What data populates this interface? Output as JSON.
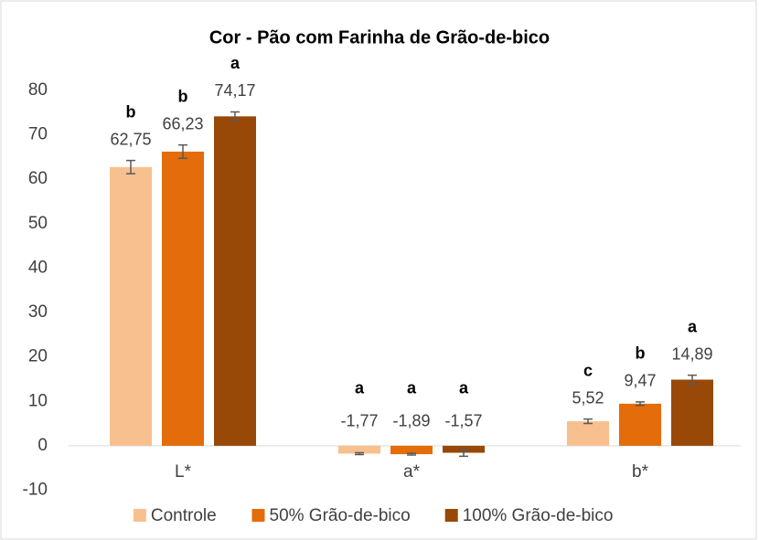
{
  "chart_data": {
    "type": "bar",
    "title": "Cor - Pão com Farinha de Grão-de-bico",
    "categories": [
      "L*",
      "a*",
      "b*"
    ],
    "series": [
      {
        "name": "Controle",
        "color": "#F8C08E",
        "values": [
          62.75,
          -1.77,
          5.52
        ],
        "value_labels": [
          "62,75",
          "-1,77",
          "5,52"
        ],
        "errors": [
          1.5,
          0.2,
          0.5
        ],
        "letters": [
          "b",
          "a",
          "c"
        ]
      },
      {
        "name": "50% Grão-de-bico",
        "color": "#E46C0A",
        "values": [
          66.23,
          -1.89,
          9.47
        ],
        "value_labels": [
          "66,23",
          "-1,89",
          "9,47"
        ],
        "errors": [
          1.5,
          0.2,
          0.4
        ],
        "letters": [
          "b",
          "a",
          "b"
        ]
      },
      {
        "name": "100% Grão-de-bico",
        "color": "#984807",
        "values": [
          74.17,
          -1.57,
          14.89
        ],
        "value_labels": [
          "74,17",
          "-1,57",
          "14,89"
        ],
        "errors": [
          1.0,
          0.8,
          1.0
        ],
        "letters": [
          "a",
          "a",
          "a"
        ]
      }
    ],
    "ylim": [
      -10,
      80
    ],
    "yticks": [
      -10,
      0,
      10,
      20,
      30,
      40,
      50,
      60,
      70,
      80
    ],
    "legend": "bottom"
  }
}
